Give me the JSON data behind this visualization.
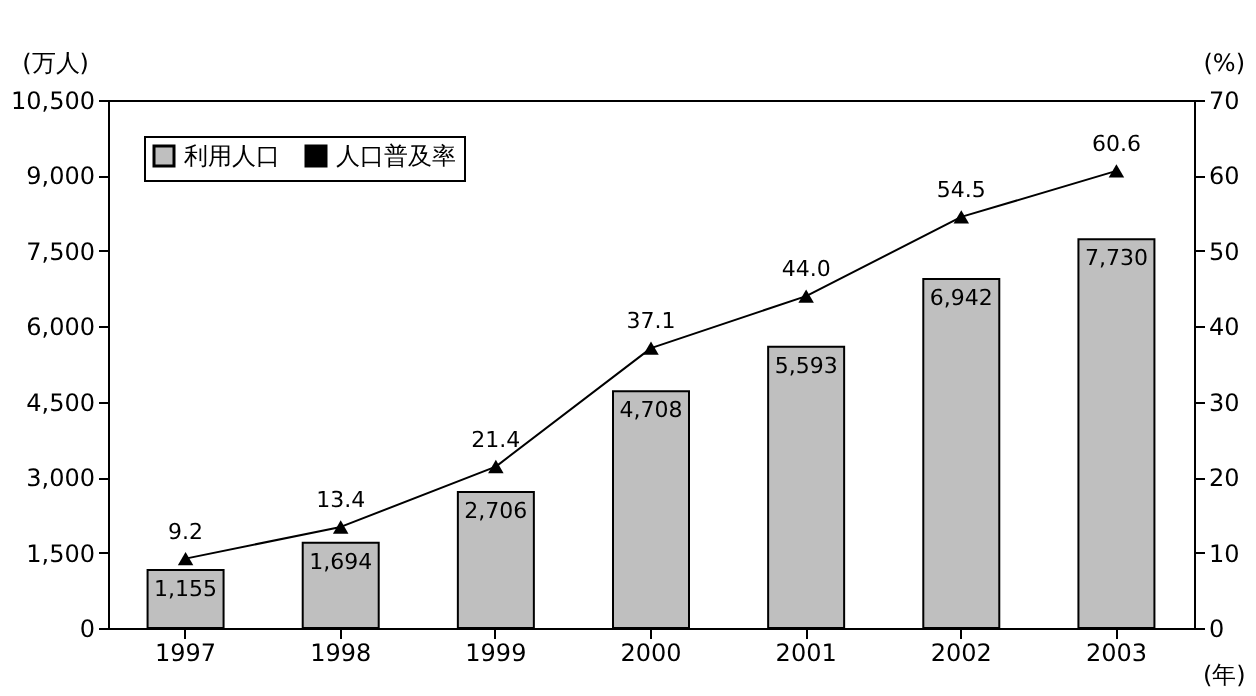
{
  "chart_data": {
    "type": "bar",
    "categories": [
      "1997",
      "1998",
      "1999",
      "2000",
      "2001",
      "2002",
      "2003"
    ],
    "xlabel": "(年)",
    "ylabel": "(万人)",
    "y2label": "(%)",
    "ylim": [
      0,
      10500
    ],
    "yticks": [
      0,
      {
        "value": 1500,
        "label": "1,500"
      },
      {
        "value": 3000,
        "label": "3,000"
      },
      {
        "value": 4500,
        "label": "4,500"
      },
      {
        "value": 6000,
        "label": "6,000"
      },
      {
        "value": 7500,
        "label": "7,500"
      },
      {
        "value": 9000,
        "label": "9,000"
      },
      {
        "value": 10500,
        "label": "10,500"
      }
    ],
    "y2lim": [
      0,
      70
    ],
    "y2ticks": [
      0,
      10,
      20,
      30,
      40,
      50,
      60,
      70
    ],
    "series": [
      {
        "name": "利用人口",
        "color": "#bfbfbf",
        "values": [
          1155,
          1694,
          2706,
          4708,
          5593,
          6942,
          7730
        ],
        "value_labels": [
          "1,155",
          "1,694",
          "2,706",
          "4,708",
          "5,593",
          "6,942",
          "7,730"
        ]
      },
      {
        "name": "人口普及率",
        "type": "line",
        "axis": "y2",
        "color": "#000000",
        "values": [
          9.2,
          13.4,
          21.4,
          37.1,
          44.0,
          54.5,
          60.6
        ],
        "value_labels": [
          "9.2",
          "13.4",
          "21.4",
          "37.1",
          "44.0",
          "54.5",
          "60.6"
        ],
        "marker": "triangle"
      }
    ],
    "legend": "top left",
    "grid": false
  }
}
